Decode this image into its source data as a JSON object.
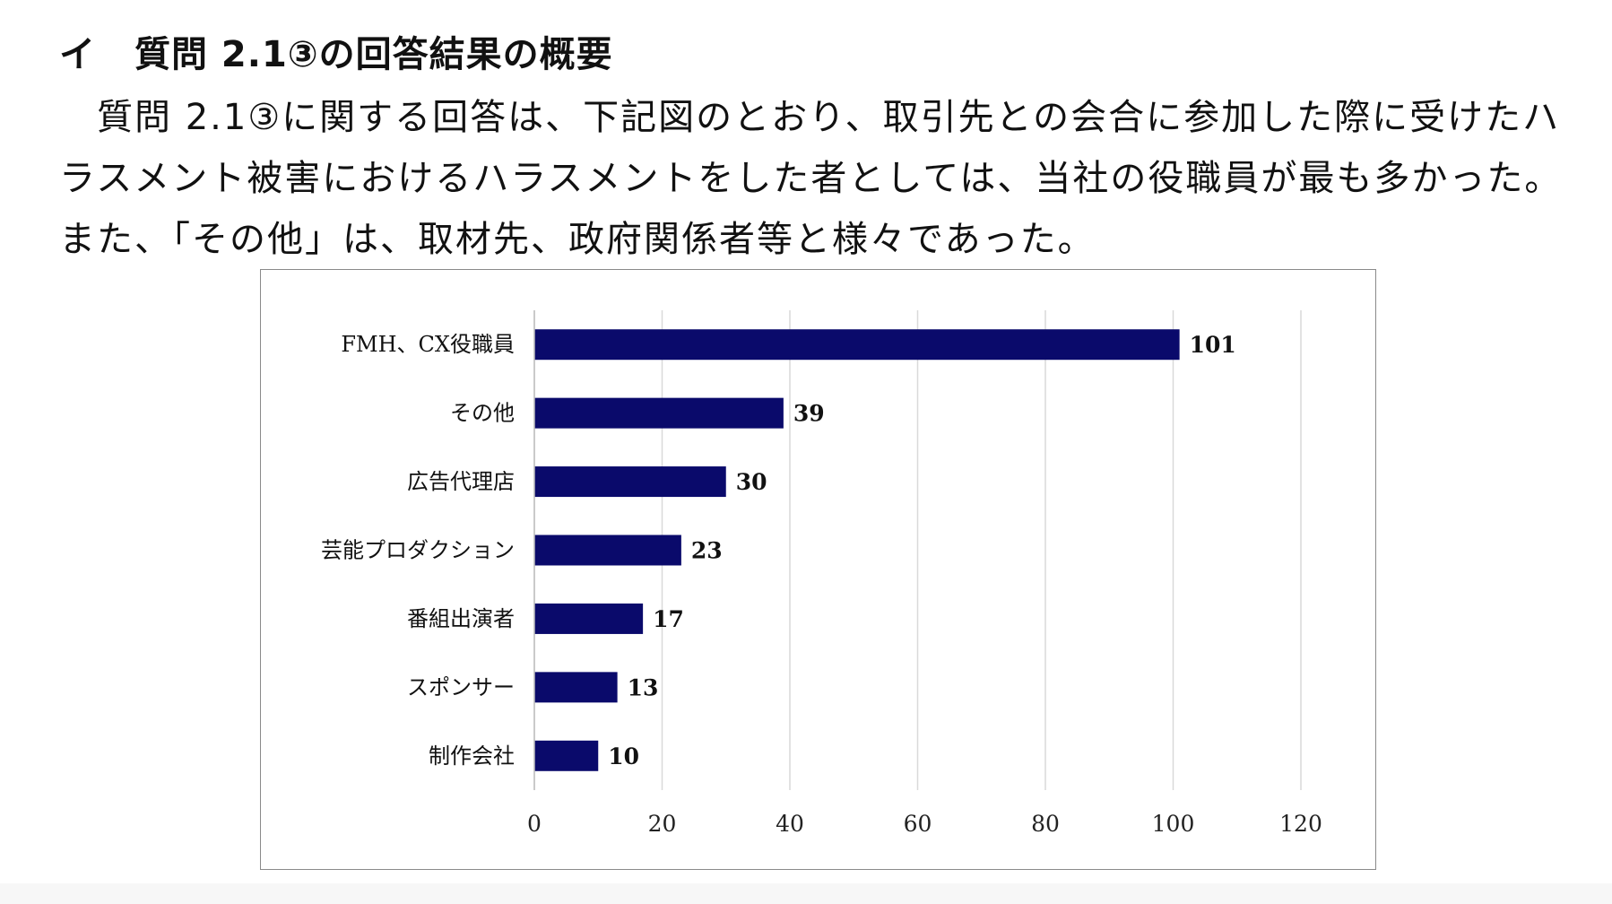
{
  "heading": {
    "marker": "イ",
    "text": "質問 2.1③の回答結果の概要"
  },
  "paragraph": {
    "line1": "　質問 2.1③に関する回答は、下記図のとおり、取引先との会合に参加した際に受けたハ",
    "line2": "ラスメント被害におけるハラスメントをした者としては、当社の役職員が最も多かった。",
    "line3": "また、「その他」は、取材先、政府関係者等と様々であった。"
  },
  "colors": {
    "bar": "#0a0a6b",
    "grid": "#d9d9d9",
    "frame": "#8a8a8a"
  },
  "chart_data": {
    "type": "bar",
    "orientation": "horizontal",
    "categories": [
      "FMH、CX役職員",
      "その他",
      "広告代理店",
      "芸能プロダクション",
      "番組出演者",
      "スポンサー",
      "制作会社"
    ],
    "values": [
      101,
      39,
      30,
      23,
      17,
      13,
      10
    ],
    "xlim": [
      0,
      120
    ],
    "xticks": [
      0,
      20,
      40,
      60,
      80,
      100,
      120
    ],
    "grid": "vertical",
    "data_labels": true,
    "legend": false
  }
}
